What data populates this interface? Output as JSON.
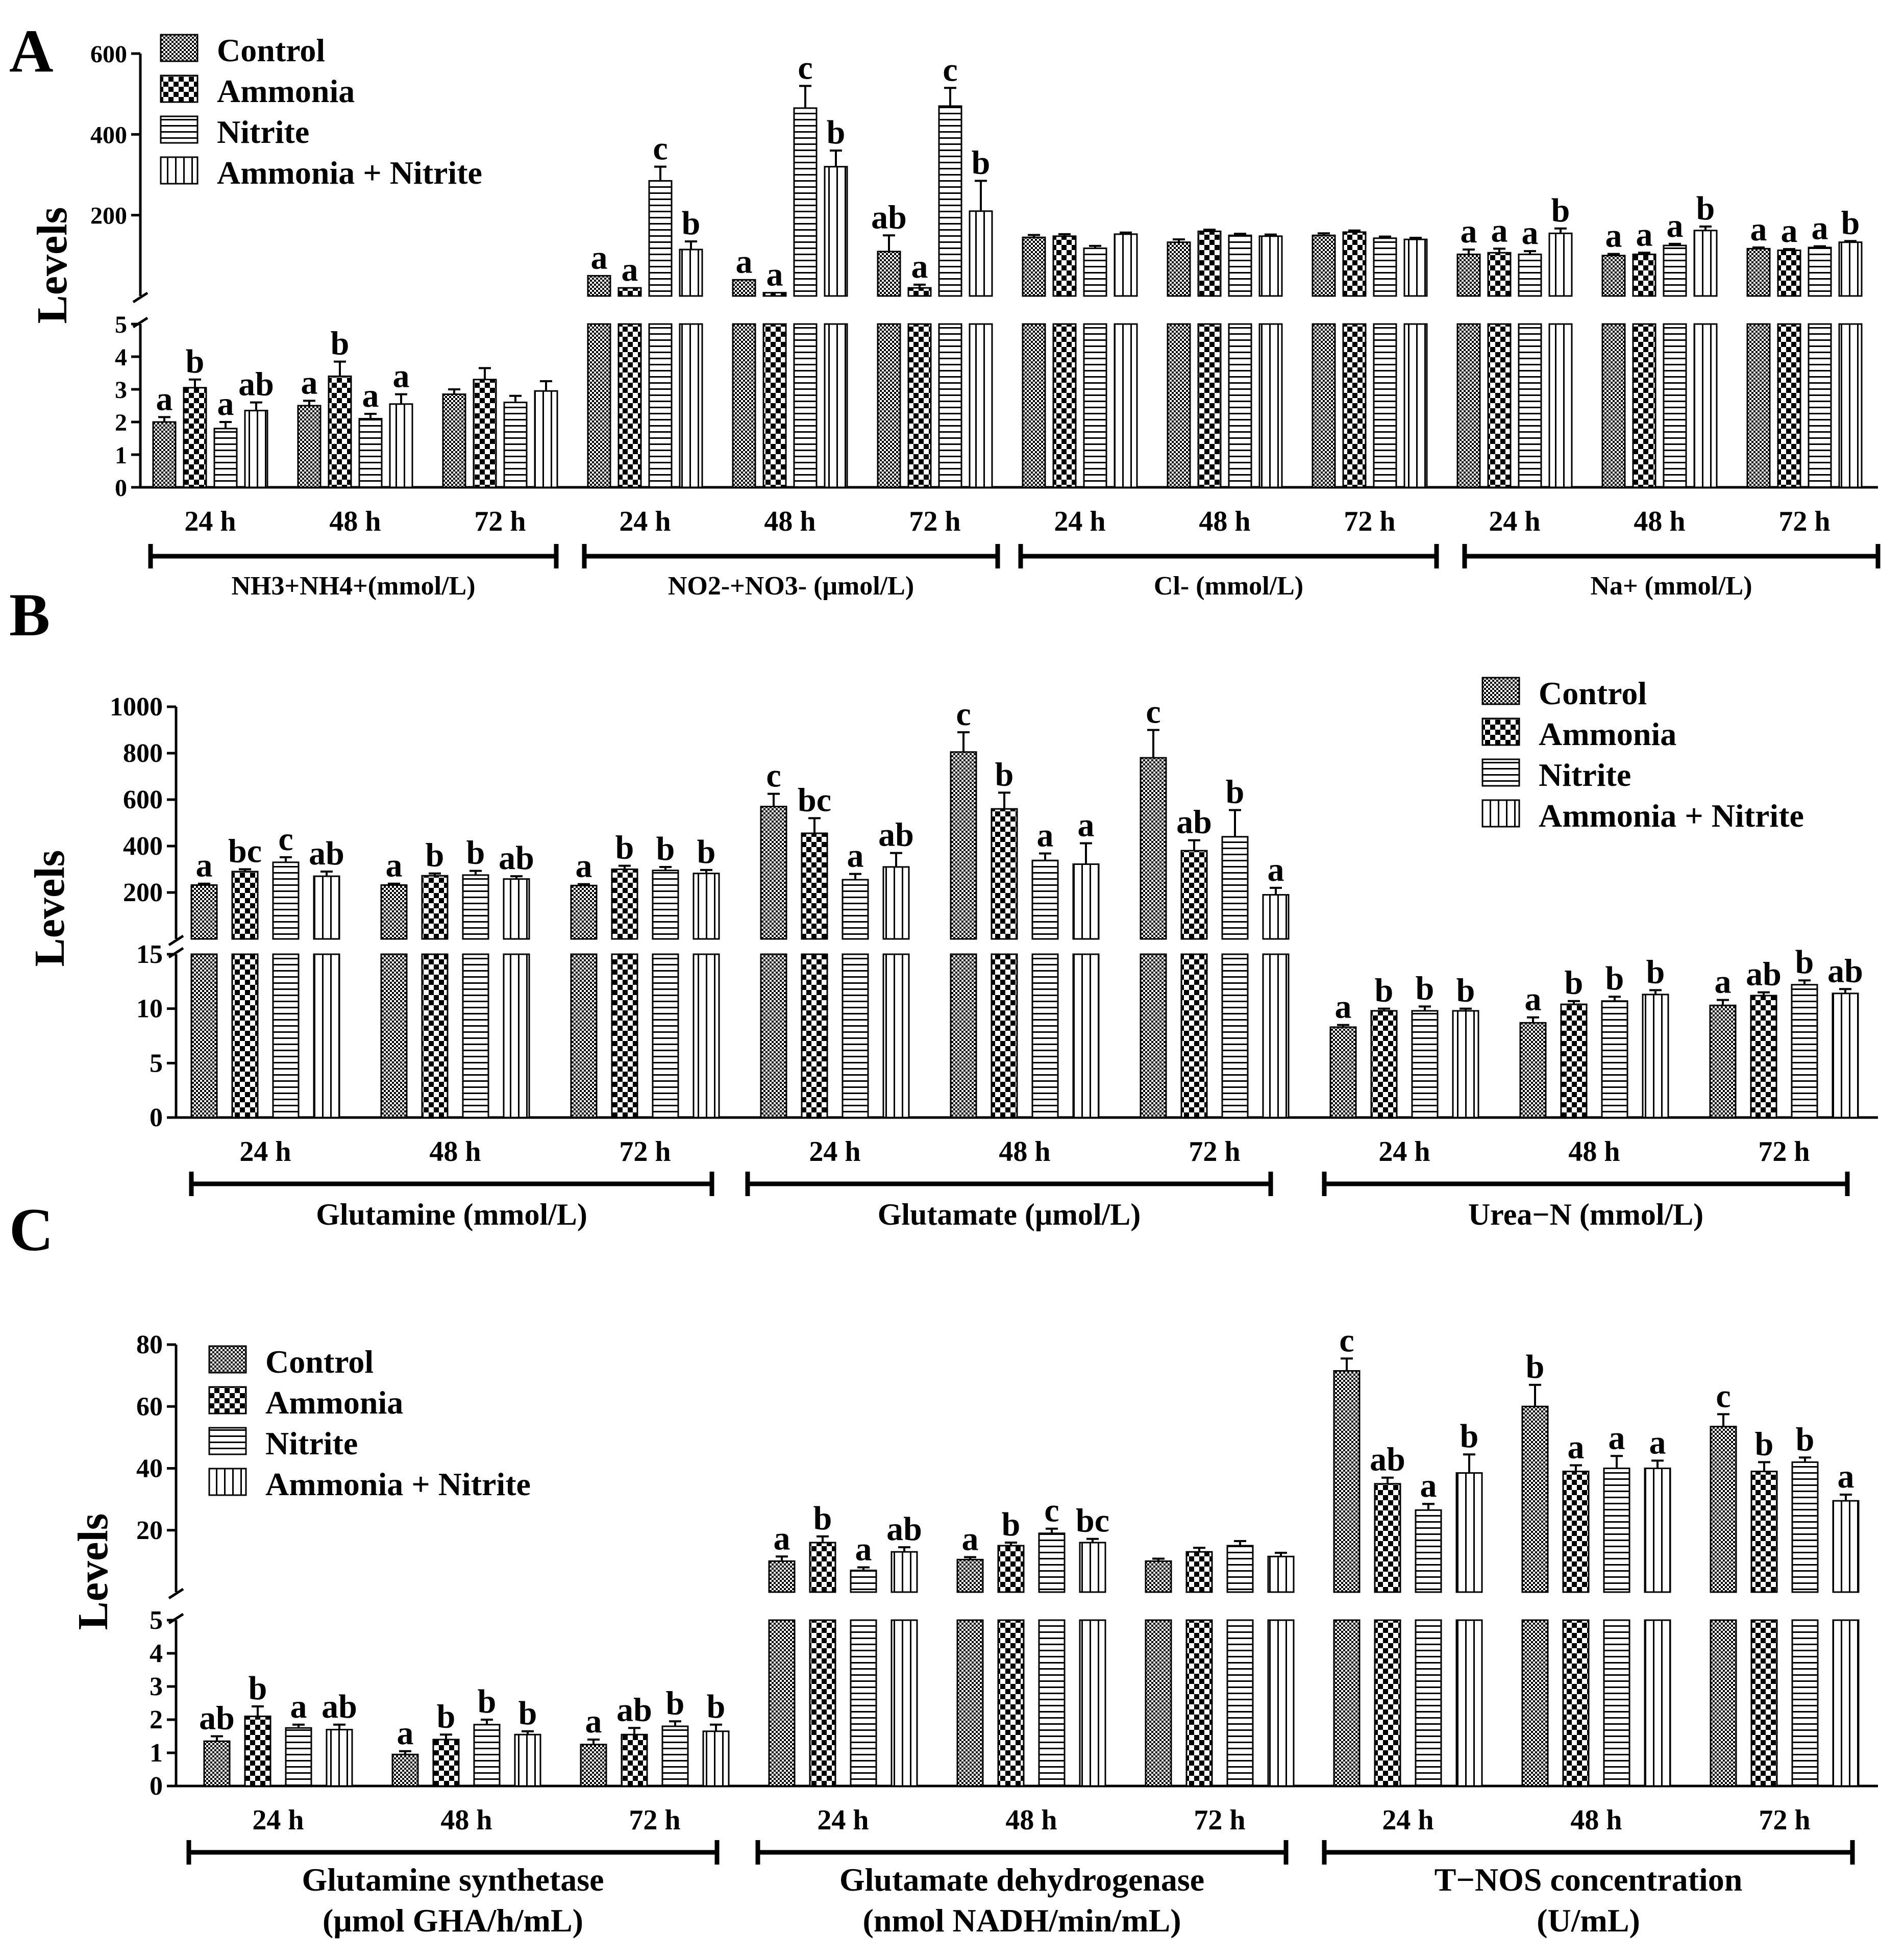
{
  "figure": {
    "legend": [
      "Control",
      "Ammonia",
      "Nitrite",
      "Ammonia + Nitrite"
    ],
    "colors": {
      "ink": "#000000",
      "background": "#ffffff"
    }
  },
  "chart_data": [
    {
      "panel": "A",
      "type": "bar",
      "ylabel": "Levels",
      "axis_break": true,
      "lower_range": [
        0,
        5
      ],
      "lower_ticks": [
        0,
        1,
        2,
        3,
        4,
        5
      ],
      "upper_range": [
        0,
        600
      ],
      "upper_ticks": [
        200,
        400,
        600
      ],
      "legend_position": "top-left",
      "series_names": [
        "Control",
        "Ammonia",
        "Nitrite",
        "Ammonia + Nitrite"
      ],
      "groups": [
        {
          "label": "NH3+NH4+(mmol/L)",
          "scale": "lower",
          "times": [
            {
              "time": "24 h",
              "values": [
                2.0,
                3.05,
                1.8,
                2.35
              ],
              "errors": [
                0.15,
                0.25,
                0.2,
                0.25
              ],
              "letters": [
                "a",
                "b",
                "a",
                "ab"
              ]
            },
            {
              "time": "48 h",
              "values": [
                2.5,
                3.4,
                2.1,
                2.55
              ],
              "errors": [
                0.15,
                0.45,
                0.15,
                0.3
              ],
              "letters": [
                "a",
                "b",
                "a",
                "a"
              ]
            },
            {
              "time": "72 h",
              "values": [
                2.85,
                3.3,
                2.6,
                2.95
              ],
              "errors": [
                0.15,
                0.35,
                0.2,
                0.3
              ],
              "letters": [
                "",
                "",
                "",
                ""
              ]
            }
          ]
        },
        {
          "label": "NO2-+NO3- (μmol/L)",
          "scale": "upper",
          "times": [
            {
              "time": "24 h",
              "values": [
                50,
                20,
                285,
                115
              ],
              "errors": [
                0,
                0,
                35,
                20
              ],
              "letters": [
                "a",
                "a",
                "c",
                "b"
              ]
            },
            {
              "time": "48 h",
              "values": [
                40,
                8,
                465,
                320
              ],
              "errors": [
                0,
                0,
                55,
                40
              ],
              "letters": [
                "a",
                "a",
                "c",
                "b"
              ]
            },
            {
              "time": "72 h",
              "values": [
                110,
                20,
                470,
                210
              ],
              "errors": [
                40,
                8,
                45,
                75
              ],
              "letters": [
                "ab",
                "a",
                "c",
                "b"
              ]
            }
          ]
        },
        {
          "label": "Cl- (mmol/L)",
          "scale": "upper",
          "times": [
            {
              "time": "24 h",
              "values": [
                145,
                148,
                118,
                153
              ],
              "errors": [
                6,
                5,
                6,
                4
              ],
              "letters": [
                "",
                "",
                "",
                ""
              ]
            },
            {
              "time": "48 h",
              "values": [
                133,
                160,
                150,
                148
              ],
              "errors": [
                7,
                4,
                4,
                4
              ],
              "letters": [
                "",
                "",
                "",
                ""
              ]
            },
            {
              "time": "72 h",
              "values": [
                150,
                158,
                143,
                140
              ],
              "errors": [
                5,
                4,
                4,
                4
              ],
              "letters": [
                "",
                "",
                "",
                ""
              ]
            }
          ]
        },
        {
          "label": "Na+ (mmol/L)",
          "scale": "upper",
          "times": [
            {
              "time": "24 h",
              "values": [
                103,
                107,
                103,
                155
              ],
              "errors": [
                12,
                10,
                8,
                12
              ],
              "letters": [
                "a",
                "a",
                "a",
                "b"
              ]
            },
            {
              "time": "48 h",
              "values": [
                100,
                103,
                125,
                162
              ],
              "errors": [
                4,
                4,
                4,
                10
              ],
              "letters": [
                "a",
                "a",
                "a",
                "b"
              ]
            },
            {
              "time": "72 h",
              "values": [
                117,
                113,
                120,
                133
              ],
              "errors": [
                3,
                3,
                3,
                3
              ],
              "letters": [
                "a",
                "a",
                "a",
                "b"
              ]
            }
          ]
        }
      ]
    },
    {
      "panel": "B",
      "type": "bar",
      "ylabel": "Levels",
      "axis_break": true,
      "lower_range": [
        0,
        15
      ],
      "lower_ticks": [
        0,
        5,
        10,
        15
      ],
      "upper_range": [
        0,
        1000
      ],
      "upper_ticks": [
        200,
        400,
        600,
        800,
        1000
      ],
      "legend_position": "top-right",
      "series_names": [
        "Control",
        "Ammonia",
        "Nitrite",
        "Ammonia + Nitrite"
      ],
      "groups": [
        {
          "label": "Glutamine (mmol/L)",
          "scale": "upper",
          "times": [
            {
              "time": "24 h",
              "values": [
                232,
                290,
                330,
                270
              ],
              "errors": [
                6,
                10,
                22,
                20
              ],
              "letters": [
                "a",
                "bc",
                "c",
                "ab"
              ]
            },
            {
              "time": "48 h",
              "values": [
                232,
                272,
                275,
                258
              ],
              "errors": [
                6,
                10,
                18,
                12
              ],
              "letters": [
                "a",
                "b",
                "b",
                "ab"
              ]
            },
            {
              "time": "72 h",
              "values": [
                230,
                300,
                295,
                282
              ],
              "errors": [
                6,
                15,
                15,
                15
              ],
              "letters": [
                "a",
                "b",
                "b",
                "b"
              ]
            }
          ]
        },
        {
          "label": "Glutamate (μmol/L)",
          "scale": "upper",
          "times": [
            {
              "time": "24 h",
              "values": [
                570,
                455,
                255,
                310
              ],
              "errors": [
                55,
                65,
                25,
                60
              ],
              "letters": [
                "c",
                "bc",
                "a",
                "ab"
              ]
            },
            {
              "time": "48 h",
              "values": [
                805,
                560,
                338,
                322
              ],
              "errors": [
                85,
                70,
                30,
                90
              ],
              "letters": [
                "c",
                "b",
                "a",
                "a"
              ]
            },
            {
              "time": "72 h",
              "values": [
                780,
                380,
                440,
                190
              ],
              "errors": [
                120,
                45,
                115,
                30
              ],
              "letters": [
                "c",
                "ab",
                "b",
                "a"
              ]
            }
          ]
        },
        {
          "label": "Urea−N (mmol/L)",
          "scale": "lower",
          "times": [
            {
              "time": "24 h",
              "values": [
                8.3,
                9.8,
                9.8,
                9.8
              ],
              "errors": [
                0.2,
                0.2,
                0.4,
                0.2
              ],
              "letters": [
                "a",
                "b",
                "b",
                "b"
              ]
            },
            {
              "time": "48 h",
              "values": [
                8.7,
                10.4,
                10.7,
                11.3
              ],
              "errors": [
                0.5,
                0.3,
                0.4,
                0.4
              ],
              "letters": [
                "a",
                "b",
                "b",
                "b"
              ]
            },
            {
              "time": "72 h",
              "values": [
                10.3,
                11.2,
                12.2,
                11.4
              ],
              "errors": [
                0.5,
                0.3,
                0.4,
                0.4
              ],
              "letters": [
                "a",
                "ab",
                "b",
                "ab"
              ]
            }
          ]
        }
      ]
    },
    {
      "panel": "C",
      "type": "bar",
      "ylabel": "Levels",
      "axis_break": true,
      "lower_range": [
        0,
        5
      ],
      "lower_ticks": [
        0,
        1,
        2,
        3,
        4,
        5
      ],
      "upper_range": [
        0,
        80
      ],
      "upper_ticks": [
        20,
        40,
        60,
        80
      ],
      "legend_position": "top-left",
      "series_names": [
        "Control",
        "Ammonia",
        "Nitrite",
        "Ammonia + Nitrite"
      ],
      "groups": [
        {
          "label": "Glutamine synthetase (μmol GHA/h/mL)",
          "scale": "lower",
          "times": [
            {
              "time": "24 h",
              "values": [
                1.35,
                2.1,
                1.75,
                1.7
              ],
              "errors": [
                0.15,
                0.3,
                0.1,
                0.15
              ],
              "letters": [
                "ab",
                "b",
                "a",
                "ab"
              ]
            },
            {
              "time": "48 h",
              "values": [
                0.95,
                1.4,
                1.85,
                1.55
              ],
              "errors": [
                0.1,
                0.15,
                0.15,
                0.1
              ],
              "letters": [
                "a",
                "b",
                "b",
                "b"
              ]
            },
            {
              "time": "72 h",
              "values": [
                1.25,
                1.55,
                1.8,
                1.65
              ],
              "errors": [
                0.15,
                0.2,
                0.15,
                0.2
              ],
              "letters": [
                "a",
                "ab",
                "b",
                "b"
              ]
            }
          ]
        },
        {
          "label": "Glutamate dehydrogenase (nmol NADH/min/mL)",
          "scale": "upper",
          "times": [
            {
              "time": "24 h",
              "values": [
                10,
                16,
                7,
                13
              ],
              "errors": [
                1.5,
                2,
                1,
                1.5
              ],
              "letters": [
                "a",
                "b",
                "a",
                "ab"
              ]
            },
            {
              "time": "48 h",
              "values": [
                10.5,
                15,
                19,
                16
              ],
              "errors": [
                0.8,
                1,
                1.5,
                1.2
              ],
              "letters": [
                "a",
                "b",
                "c",
                "bc"
              ]
            },
            {
              "time": "72 h",
              "values": [
                10,
                13,
                15,
                11.5
              ],
              "errors": [
                0.8,
                1.3,
                1.5,
                1.2
              ],
              "letters": [
                "",
                "",
                "",
                ""
              ]
            }
          ]
        },
        {
          "label": "T−NOS concentration (U/mL)",
          "scale": "upper",
          "times": [
            {
              "time": "24 h",
              "values": [
                71.5,
                35,
                26.5,
                38.5
              ],
              "errors": [
                4,
                2,
                2,
                6
              ],
              "letters": [
                "c",
                "ab",
                "a",
                "b"
              ]
            },
            {
              "time": "48 h",
              "values": [
                60,
                39,
                40,
                40
              ],
              "errors": [
                7,
                2,
                4,
                2.5
              ],
              "letters": [
                "b",
                "a",
                "a",
                "a"
              ]
            },
            {
              "time": "72 h",
              "values": [
                53.5,
                39,
                42,
                29.5
              ],
              "errors": [
                4,
                3,
                1.5,
                2
              ],
              "letters": [
                "c",
                "b",
                "b",
                "a"
              ]
            }
          ]
        }
      ]
    }
  ]
}
